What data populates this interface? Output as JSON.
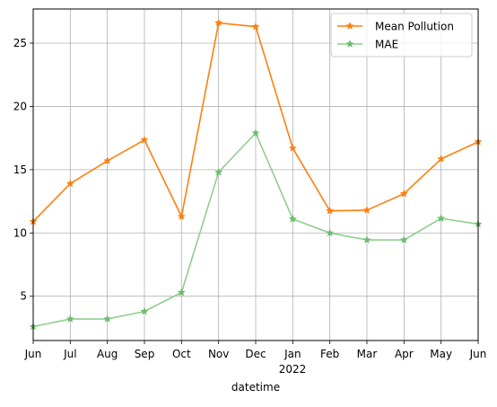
{
  "chart_data": {
    "type": "line",
    "categories": [
      "Jun",
      "Jul",
      "Aug",
      "Sep",
      "Oct",
      "Nov",
      "Dec",
      "Jan",
      "Feb",
      "Mar",
      "Apr",
      "May",
      "Jun"
    ],
    "year_label": "2022",
    "xlabel": "datetime",
    "ylim": [
      1.5,
      27.7
    ],
    "yticks": [
      5,
      10,
      15,
      20,
      25
    ],
    "grid": true,
    "legend_position": "top-right",
    "series": [
      {
        "name": "Mean Pollution",
        "color": "#ff7f0e",
        "marker": "star",
        "values": [
          10.9,
          13.9,
          15.7,
          17.35,
          11.3,
          26.6,
          26.3,
          16.7,
          11.75,
          11.8,
          13.1,
          15.85,
          17.2
        ]
      },
      {
        "name": "MAE",
        "color": "#8fce8f",
        "marker_color": "#6dbb6d",
        "marker": "star",
        "values": [
          2.6,
          3.2,
          3.2,
          3.8,
          5.3,
          14.8,
          17.9,
          11.1,
          10.0,
          9.45,
          9.45,
          11.15,
          10.7
        ]
      }
    ]
  }
}
